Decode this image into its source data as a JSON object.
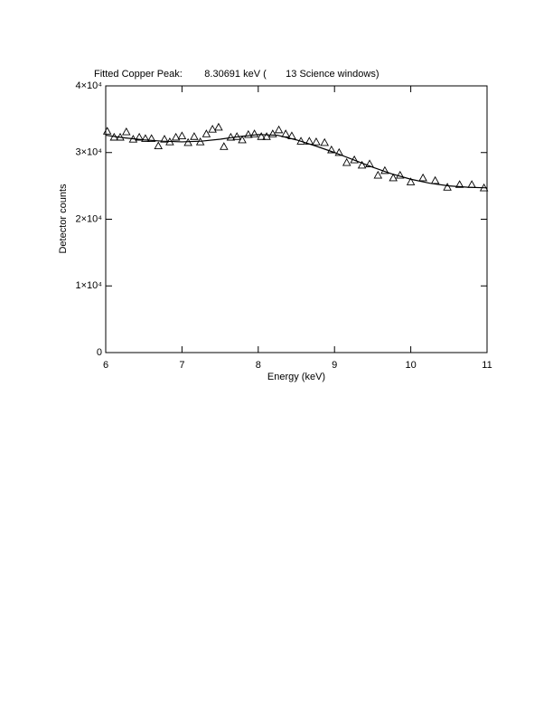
{
  "chart_data": {
    "type": "scatter",
    "title": "Fitted Copper Peak:        8.30691 keV (       13 Science windows)",
    "x_label": "Energy (keV)",
    "y_label": "Detector counts",
    "xlim": [
      6,
      11
    ],
    "ylim": [
      0,
      40000
    ],
    "xticks": [
      6,
      7,
      8,
      9,
      10,
      11
    ],
    "yticks": [
      0,
      {
        "value": 10000,
        "label": "1×10⁴"
      },
      {
        "value": 20000,
        "label": "2×10⁴"
      },
      {
        "value": 30000,
        "label": "3×10⁴"
      },
      {
        "value": 40000,
        "label": "4×10⁴"
      }
    ],
    "color": "#000000",
    "points": {
      "x": [
        6.02,
        6.11,
        6.19,
        6.27,
        6.36,
        6.44,
        6.52,
        6.6,
        6.69,
        6.77,
        6.84,
        6.92,
        7.0,
        7.08,
        7.16,
        7.24,
        7.32,
        7.4,
        7.48,
        7.55,
        7.64,
        7.72,
        7.79,
        7.87,
        7.95,
        8.04,
        8.11,
        8.19,
        8.27,
        8.36,
        8.44,
        8.56,
        8.67,
        8.76,
        8.87,
        8.96,
        9.06,
        9.16,
        9.26,
        9.36,
        9.46,
        9.57,
        9.66,
        9.77,
        9.86,
        10.0,
        10.16,
        10.32,
        10.48,
        10.64,
        10.8,
        10.96
      ],
      "values": [
        33200,
        32300,
        32300,
        33100,
        32000,
        32300,
        32100,
        32100,
        31000,
        32000,
        31600,
        32300,
        32500,
        31500,
        32400,
        31600,
        32800,
        33500,
        33800,
        30900,
        32300,
        32400,
        31900,
        32700,
        32800,
        32400,
        32400,
        32800,
        33400,
        32800,
        32500,
        31700,
        31700,
        31600,
        31500,
        30400,
        30000,
        28500,
        28900,
        28100,
        28300,
        26600,
        27300,
        26200,
        26600,
        25600,
        26200,
        25800,
        24800,
        25200,
        25200,
        24700
      ]
    },
    "fit": {
      "x": [
        6,
        6.25,
        6.5,
        6.75,
        7,
        7.25,
        7.5,
        7.75,
        8,
        8.25,
        8.5,
        8.75,
        9,
        9.25,
        9.5,
        9.75,
        10,
        10.25,
        10.5,
        10.75,
        11
      ],
      "values": [
        32600,
        32200,
        31900,
        31700,
        31600,
        31700,
        32000,
        32400,
        32700,
        32600,
        31900,
        31000,
        30000,
        28900,
        27800,
        26800,
        26000,
        25400,
        25000,
        24800,
        24700
      ]
    }
  }
}
